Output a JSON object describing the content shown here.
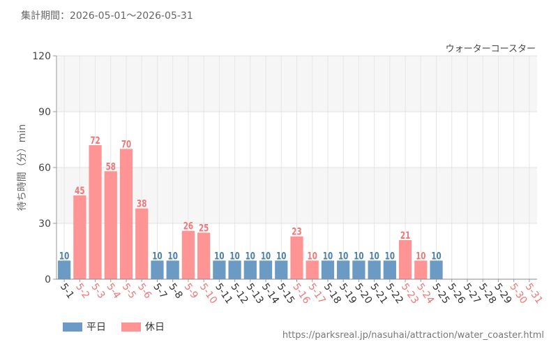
{
  "header": {
    "period_label": "集計期間：",
    "period_range": "2026-05-01～2026-05-31"
  },
  "chart_data": {
    "type": "bar",
    "title": "ウォーターコースター",
    "ylabel": "待ち時間（分）min",
    "xlabel": "",
    "ylim": [
      0,
      120
    ],
    "yticks": [
      0,
      30,
      60,
      90,
      120
    ],
    "categories": [
      "5-1",
      "5-2",
      "5-3",
      "5-4",
      "5-5",
      "5-6",
      "5-7",
      "5-8",
      "5-9",
      "5-10",
      "5-11",
      "5-12",
      "5-13",
      "5-14",
      "5-15",
      "5-16",
      "5-17",
      "5-18",
      "5-19",
      "5-20",
      "5-21",
      "5-22",
      "5-23",
      "5-24",
      "5-25",
      "5-26",
      "5-27",
      "5-28",
      "5-29",
      "5-30",
      "5-31"
    ],
    "values": [
      10,
      45,
      72,
      58,
      70,
      38,
      10,
      10,
      26,
      25,
      10,
      10,
      10,
      10,
      10,
      23,
      10,
      10,
      10,
      10,
      10,
      10,
      21,
      10,
      10,
      null,
      null,
      null,
      null,
      null,
      null
    ],
    "day_type": [
      "weekday",
      "holiday",
      "holiday",
      "holiday",
      "holiday",
      "holiday",
      "weekday",
      "weekday",
      "holiday",
      "holiday",
      "weekday",
      "weekday",
      "weekday",
      "weekday",
      "weekday",
      "holiday",
      "holiday",
      "weekday",
      "weekday",
      "weekday",
      "weekday",
      "weekday",
      "holiday",
      "holiday",
      "weekday",
      "weekday",
      "weekday",
      "weekday",
      "weekday",
      "holiday",
      "holiday"
    ],
    "series": [
      {
        "name": "平日",
        "color": "#6b9ac4"
      },
      {
        "name": "休日",
        "color": "#ff9494"
      }
    ],
    "label_colors": {
      "weekday": "#4a7fae",
      "holiday": "#ee7777",
      "weekday_tick": "#333333",
      "holiday_tick": "#ee7777"
    },
    "grid": true,
    "legend_position": "bottom-left"
  },
  "footer": {
    "source": "https://parksreal.jp/nasuhai/attraction/water_coaster.html"
  }
}
